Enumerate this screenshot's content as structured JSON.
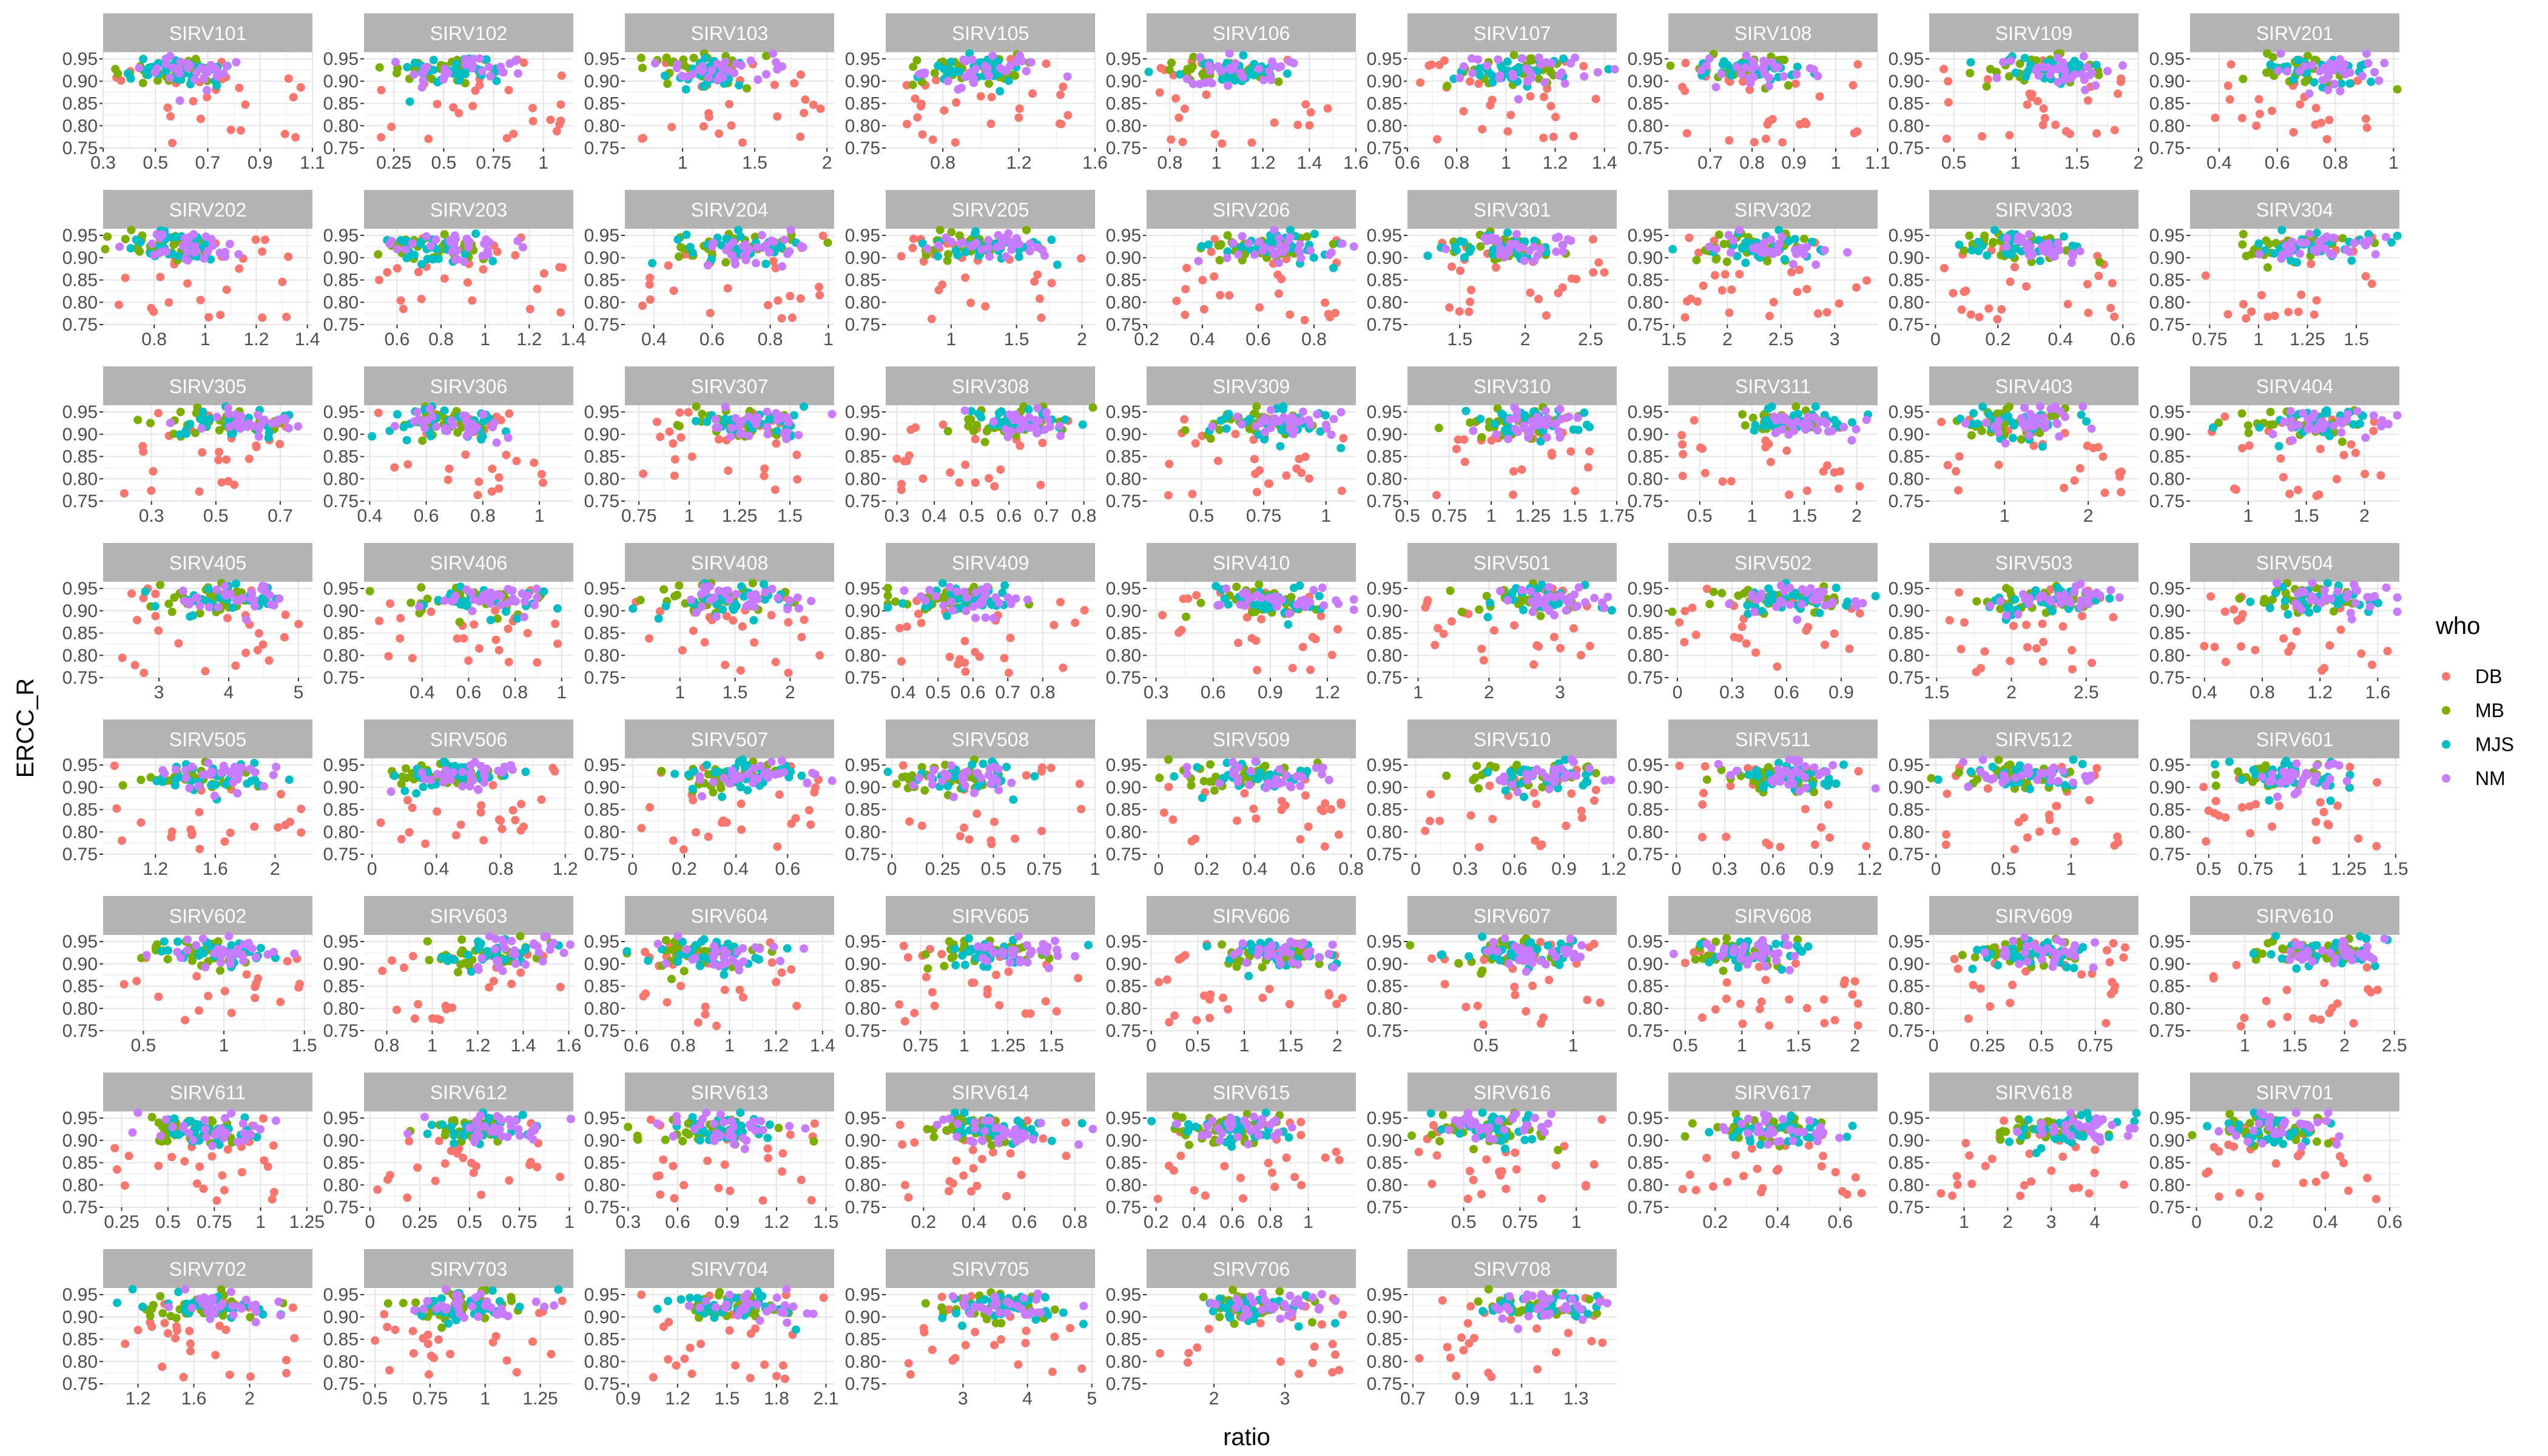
{
  "chart_data": {
    "type": "scatter",
    "xlabel": "ratio",
    "ylabel": "ERCC_R",
    "ylim": [
      0.75,
      0.965
    ],
    "y_ticks": [
      0.75,
      0.8,
      0.85,
      0.9,
      0.95
    ],
    "grid": true,
    "legend": {
      "title": "who",
      "position": "right",
      "entries": [
        {
          "name": "DB",
          "color": "#F8766D"
        },
        {
          "name": "MB",
          "color": "#7CAE00"
        },
        {
          "name": "MJS",
          "color": "#00BFC4"
        },
        {
          "name": "NM",
          "color": "#C77CFF"
        }
      ]
    },
    "panels": [
      {
        "name": "SIRV101",
        "xlim": [
          0.3,
          1.1
        ],
        "xticks": [
          0.3,
          0.5,
          0.7,
          0.9,
          1.1
        ]
      },
      {
        "name": "SIRV102",
        "xlim": [
          0.1,
          1.15
        ],
        "xticks": [
          0.25,
          0.5,
          0.75,
          1.0
        ]
      },
      {
        "name": "SIRV103",
        "xlim": [
          0.6,
          2.05
        ],
        "xticks": [
          1.0,
          1.5,
          2.0
        ]
      },
      {
        "name": "SIRV105",
        "xlim": [
          0.5,
          1.6
        ],
        "xticks": [
          0.8,
          1.2,
          1.6
        ]
      },
      {
        "name": "SIRV106",
        "xlim": [
          0.7,
          1.6
        ],
        "xticks": [
          0.8,
          1.0,
          1.2,
          1.4,
          1.6
        ]
      },
      {
        "name": "SIRV107",
        "xlim": [
          0.6,
          1.45
        ],
        "xticks": [
          0.6,
          0.8,
          1.0,
          1.2,
          1.4
        ]
      },
      {
        "name": "SIRV108",
        "xlim": [
          0.6,
          1.1
        ],
        "xticks": [
          0.7,
          0.8,
          0.9,
          1.0,
          1.1
        ]
      },
      {
        "name": "SIRV109",
        "xlim": [
          0.3,
          2.0
        ],
        "xticks": [
          0.5,
          1.0,
          1.5,
          2.0
        ]
      },
      {
        "name": "SIRV201",
        "xlim": [
          0.3,
          1.02
        ],
        "xticks": [
          0.4,
          0.6,
          0.8,
          1.0
        ]
      },
      {
        "name": "SIRV202",
        "xlim": [
          0.6,
          1.42
        ],
        "xticks": [
          0.8,
          1.0,
          1.2,
          1.4
        ]
      },
      {
        "name": "SIRV203",
        "xlim": [
          0.45,
          1.4
        ],
        "xticks": [
          0.6,
          0.8,
          1.0,
          1.2,
          1.4
        ]
      },
      {
        "name": "SIRV204",
        "xlim": [
          0.3,
          1.02
        ],
        "xticks": [
          0.4,
          0.6,
          0.8,
          1.0
        ]
      },
      {
        "name": "SIRV205",
        "xlim": [
          0.5,
          2.1
        ],
        "xticks": [
          1.0,
          1.5,
          2.0
        ]
      },
      {
        "name": "SIRV206",
        "xlim": [
          0.2,
          0.95
        ],
        "xticks": [
          0.2,
          0.4,
          0.6,
          0.8
        ]
      },
      {
        "name": "SIRV301",
        "xlim": [
          1.1,
          2.7
        ],
        "xticks": [
          1.5,
          2.0,
          2.5
        ]
      },
      {
        "name": "SIRV302",
        "xlim": [
          1.45,
          3.4
        ],
        "xticks": [
          1.5,
          2.0,
          2.5,
          3.0
        ]
      },
      {
        "name": "SIRV303",
        "xlim": [
          -0.02,
          0.65
        ],
        "xticks": [
          0.0,
          0.2,
          0.4,
          0.6
        ]
      },
      {
        "name": "SIRV304",
        "xlim": [
          0.65,
          1.72
        ],
        "xticks": [
          0.75,
          1.0,
          1.25,
          1.5
        ]
      },
      {
        "name": "SIRV305",
        "xlim": [
          0.15,
          0.8
        ],
        "xticks": [
          0.3,
          0.5,
          0.7
        ]
      },
      {
        "name": "SIRV306",
        "xlim": [
          0.38,
          1.12
        ],
        "xticks": [
          0.4,
          0.6,
          0.8,
          1.0
        ]
      },
      {
        "name": "SIRV307",
        "xlim": [
          0.68,
          1.72
        ],
        "xticks": [
          0.75,
          1.0,
          1.25,
          1.5
        ]
      },
      {
        "name": "SIRV308",
        "xlim": [
          0.27,
          0.83
        ],
        "xticks": [
          0.3,
          0.4,
          0.5,
          0.6,
          0.7,
          0.8
        ]
      },
      {
        "name": "SIRV309",
        "xlim": [
          0.28,
          1.12
        ],
        "xticks": [
          0.5,
          0.75,
          1.0
        ]
      },
      {
        "name": "SIRV310",
        "xlim": [
          0.5,
          1.75
        ],
        "xticks": [
          0.5,
          0.75,
          1.0,
          1.25,
          1.5,
          1.75
        ]
      },
      {
        "name": "SIRV311",
        "xlim": [
          0.2,
          2.2
        ],
        "xticks": [
          0.5,
          1.0,
          1.5,
          2.0
        ]
      },
      {
        "name": "SIRV403",
        "xlim": [
          0.1,
          2.6
        ],
        "xticks": [
          1,
          2
        ]
      },
      {
        "name": "SIRV404",
        "xlim": [
          0.5,
          2.3
        ],
        "xticks": [
          1.0,
          1.5,
          2.0
        ]
      },
      {
        "name": "SIRV405",
        "xlim": [
          2.2,
          5.2
        ],
        "xticks": [
          3,
          4,
          5
        ]
      },
      {
        "name": "SIRV406",
        "xlim": [
          0.15,
          1.05
        ],
        "xticks": [
          0.4,
          0.6,
          0.8,
          1.0
        ]
      },
      {
        "name": "SIRV408",
        "xlim": [
          0.5,
          2.4
        ],
        "xticks": [
          1.0,
          1.5,
          2.0
        ]
      },
      {
        "name": "SIRV409",
        "xlim": [
          0.35,
          0.95
        ],
        "xticks": [
          0.4,
          0.5,
          0.6,
          0.7,
          0.8
        ]
      },
      {
        "name": "SIRV410",
        "xlim": [
          0.25,
          1.35
        ],
        "xticks": [
          0.3,
          0.6,
          0.9,
          1.2
        ]
      },
      {
        "name": "SIRV501",
        "xlim": [
          0.85,
          3.8
        ],
        "xticks": [
          1,
          2,
          3
        ]
      },
      {
        "name": "SIRV502",
        "xlim": [
          -0.05,
          1.1
        ],
        "xticks": [
          0.0,
          0.3,
          0.6,
          0.9
        ]
      },
      {
        "name": "SIRV503",
        "xlim": [
          1.45,
          2.85
        ],
        "xticks": [
          1.5,
          2.0,
          2.5
        ]
      },
      {
        "name": "SIRV504",
        "xlim": [
          0.3,
          1.75
        ],
        "xticks": [
          0.4,
          0.8,
          1.2,
          1.6
        ]
      },
      {
        "name": "SIRV505",
        "xlim": [
          0.85,
          2.25
        ],
        "xticks": [
          1.2,
          1.6,
          2.0
        ]
      },
      {
        "name": "SIRV506",
        "xlim": [
          -0.05,
          1.25
        ],
        "xticks": [
          0.0,
          0.4,
          0.8,
          1.2
        ]
      },
      {
        "name": "SIRV507",
        "xlim": [
          -0.03,
          0.78
        ],
        "xticks": [
          0.0,
          0.2,
          0.4,
          0.6
        ]
      },
      {
        "name": "SIRV508",
        "xlim": [
          -0.03,
          1.0
        ],
        "xticks": [
          0.0,
          0.25,
          0.5,
          0.75,
          1.0
        ]
      },
      {
        "name": "SIRV509",
        "xlim": [
          -0.05,
          0.82
        ],
        "xticks": [
          0.0,
          0.2,
          0.4,
          0.6,
          0.8
        ]
      },
      {
        "name": "SIRV510",
        "xlim": [
          -0.05,
          1.22
        ],
        "xticks": [
          0.0,
          0.3,
          0.6,
          0.9,
          1.2
        ]
      },
      {
        "name": "SIRV511",
        "xlim": [
          -0.05,
          1.25
        ],
        "xticks": [
          0.0,
          0.3,
          0.6,
          0.9,
          1.2
        ]
      },
      {
        "name": "SIRV512",
        "xlim": [
          -0.05,
          1.5
        ],
        "xticks": [
          0.0,
          0.5,
          1.0
        ]
      },
      {
        "name": "SIRV601",
        "xlim": [
          0.4,
          1.52
        ],
        "xticks": [
          0.5,
          0.75,
          1.0,
          1.25,
          1.5
        ]
      },
      {
        "name": "SIRV602",
        "xlim": [
          0.25,
          1.55
        ],
        "xticks": [
          0.5,
          1.0,
          1.5
        ]
      },
      {
        "name": "SIRV603",
        "xlim": [
          0.7,
          1.62
        ],
        "xticks": [
          0.8,
          1.0,
          1.2,
          1.4,
          1.6
        ]
      },
      {
        "name": "SIRV604",
        "xlim": [
          0.55,
          1.45
        ],
        "xticks": [
          0.6,
          0.8,
          1.0,
          1.2,
          1.4
        ]
      },
      {
        "name": "SIRV605",
        "xlim": [
          0.55,
          1.75
        ],
        "xticks": [
          0.75,
          1.0,
          1.25,
          1.5
        ]
      },
      {
        "name": "SIRV606",
        "xlim": [
          -0.05,
          2.2
        ],
        "xticks": [
          0.0,
          0.5,
          1.0,
          1.5,
          2.0
        ]
      },
      {
        "name": "SIRV607",
        "xlim": [
          0.05,
          1.25
        ],
        "xticks": [
          0.5,
          1.0
        ]
      },
      {
        "name": "SIRV608",
        "xlim": [
          0.35,
          2.2
        ],
        "xticks": [
          0.5,
          1.0,
          1.5,
          2.0
        ]
      },
      {
        "name": "SIRV609",
        "xlim": [
          -0.02,
          0.95
        ],
        "xticks": [
          0.0,
          0.25,
          0.5,
          0.75
        ]
      },
      {
        "name": "SIRV610",
        "xlim": [
          0.45,
          2.55
        ],
        "xticks": [
          1.0,
          1.5,
          2.0,
          2.5
        ]
      },
      {
        "name": "SIRV611",
        "xlim": [
          0.15,
          1.28
        ],
        "xticks": [
          0.25,
          0.5,
          0.75,
          1.0,
          1.25
        ]
      },
      {
        "name": "SIRV612",
        "xlim": [
          -0.03,
          1.02
        ],
        "xticks": [
          0.0,
          0.25,
          0.5,
          0.75,
          1.0
        ]
      },
      {
        "name": "SIRV613",
        "xlim": [
          0.28,
          1.55
        ],
        "xticks": [
          0.3,
          0.6,
          0.9,
          1.2,
          1.5
        ]
      },
      {
        "name": "SIRV614",
        "xlim": [
          0.05,
          0.88
        ],
        "xticks": [
          0.2,
          0.4,
          0.6,
          0.8
        ]
      },
      {
        "name": "SIRV615",
        "xlim": [
          0.15,
          1.25
        ],
        "xticks": [
          0.2,
          0.4,
          0.6,
          0.8,
          1.0
        ]
      },
      {
        "name": "SIRV616",
        "xlim": [
          0.25,
          1.18
        ],
        "xticks": [
          0.5,
          0.75,
          1.0
        ]
      },
      {
        "name": "SIRV617",
        "xlim": [
          0.05,
          0.72
        ],
        "xticks": [
          0.2,
          0.4,
          0.6
        ]
      },
      {
        "name": "SIRV618",
        "xlim": [
          0.2,
          5.0
        ],
        "xticks": [
          1,
          2,
          3,
          4
        ]
      },
      {
        "name": "SIRV701",
        "xlim": [
          -0.02,
          0.63
        ],
        "xticks": [
          0.0,
          0.2,
          0.4,
          0.6
        ]
      },
      {
        "name": "SIRV702",
        "xlim": [
          0.95,
          2.45
        ],
        "xticks": [
          1.2,
          1.6,
          2.0
        ]
      },
      {
        "name": "SIRV703",
        "xlim": [
          0.45,
          1.4
        ],
        "xticks": [
          0.5,
          0.75,
          1.0,
          1.25
        ]
      },
      {
        "name": "SIRV704",
        "xlim": [
          0.88,
          2.15
        ],
        "xticks": [
          0.9,
          1.2,
          1.5,
          1.8,
          2.1
        ]
      },
      {
        "name": "SIRV705",
        "xlim": [
          1.8,
          5.05
        ],
        "xticks": [
          3,
          4,
          5
        ]
      },
      {
        "name": "SIRV706",
        "xlim": [
          1.05,
          4.0
        ],
        "xticks": [
          2,
          3
        ]
      },
      {
        "name": "SIRV708",
        "xlim": [
          0.68,
          1.45
        ],
        "xticks": [
          0.7,
          0.9,
          1.1,
          1.3
        ]
      }
    ]
  }
}
